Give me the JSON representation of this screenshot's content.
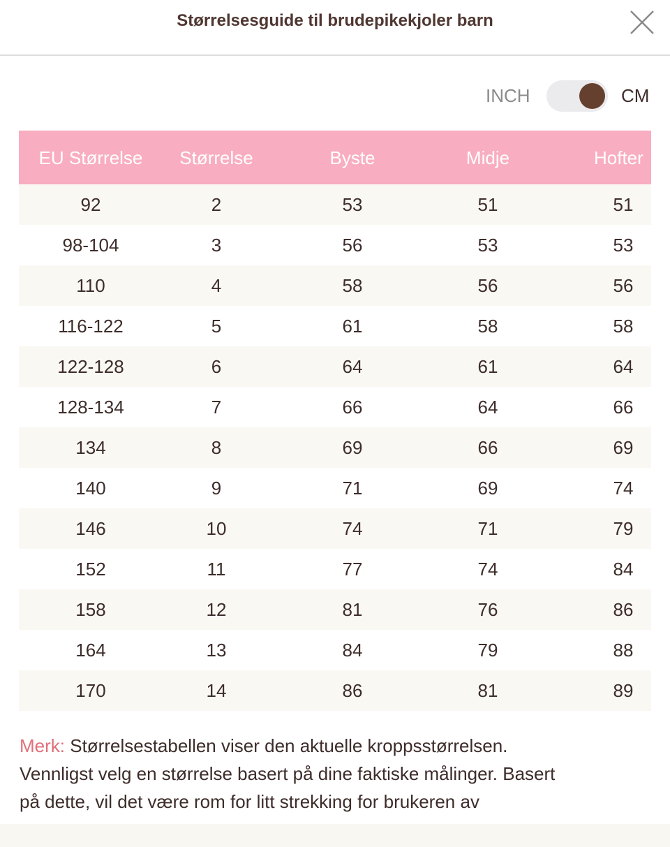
{
  "header": {
    "title": "Størrelsesguide til brudepikekjoler barn",
    "close_icon": "close-icon"
  },
  "units": {
    "inch_label": "INCH",
    "cm_label": "CM",
    "selected": "CM"
  },
  "colors": {
    "header_bg": "#f9adc0",
    "toggle_knob": "#66402f",
    "note_label": "#e0707a"
  },
  "table": {
    "columns": [
      "EU Størrelse",
      "Størrelse",
      "Byste",
      "Midje",
      "Hofter"
    ],
    "rows": [
      [
        "92",
        "2",
        "53",
        "51",
        "51"
      ],
      [
        "98-104",
        "3",
        "56",
        "53",
        "53"
      ],
      [
        "110",
        "4",
        "58",
        "56",
        "56"
      ],
      [
        "116-122",
        "5",
        "61",
        "58",
        "58"
      ],
      [
        "122-128",
        "6",
        "64",
        "61",
        "64"
      ],
      [
        "128-134",
        "7",
        "66",
        "64",
        "66"
      ],
      [
        "134",
        "8",
        "69",
        "66",
        "69"
      ],
      [
        "140",
        "9",
        "71",
        "69",
        "74"
      ],
      [
        "146",
        "10",
        "74",
        "71",
        "79"
      ],
      [
        "152",
        "11",
        "77",
        "74",
        "84"
      ],
      [
        "158",
        "12",
        "81",
        "76",
        "86"
      ],
      [
        "164",
        "13",
        "84",
        "79",
        "88"
      ],
      [
        "170",
        "14",
        "86",
        "81",
        "89"
      ]
    ]
  },
  "note": {
    "label": "Merk:",
    "lines": [
      "Størrelsestabellen viser den aktuelle kroppsstørrelsen.",
      "Vennligst velg en størrelse basert på dine faktiske målinger. Basert",
      "på dette, vil det være rom for litt strekking for brukeren av"
    ]
  }
}
